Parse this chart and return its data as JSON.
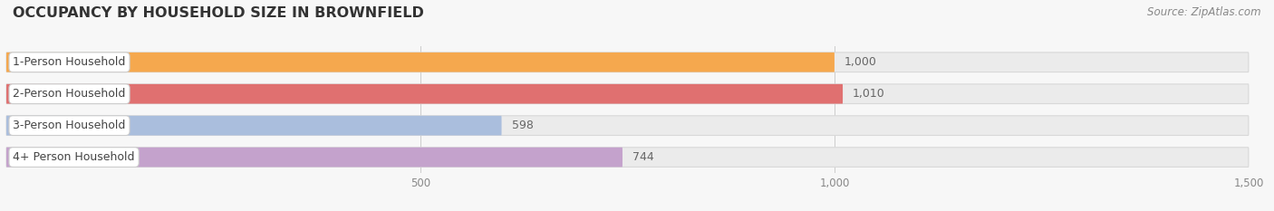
{
  "title": "OCCUPANCY BY HOUSEHOLD SIZE IN BROWNFIELD",
  "source": "Source: ZipAtlas.com",
  "categories": [
    "1-Person Household",
    "2-Person Household",
    "3-Person Household",
    "4+ Person Household"
  ],
  "values": [
    1000,
    1010,
    598,
    744
  ],
  "bar_colors": [
    "#f5a84e",
    "#e07070",
    "#aabedd",
    "#c4a2cc"
  ],
  "xlim_max": 1500,
  "xticks": [
    500,
    1000,
    1500
  ],
  "background_color": "#f7f7f7",
  "bar_bg_color": "#ebebeb",
  "bar_bg_border_color": "#d8d8d8",
  "title_fontsize": 11.5,
  "source_fontsize": 8.5,
  "bar_height": 0.62,
  "bar_label_fontsize": 9,
  "category_fontsize": 9,
  "value_label_color": "#666666",
  "category_label_color": "#444444",
  "tick_label_color": "#888888"
}
